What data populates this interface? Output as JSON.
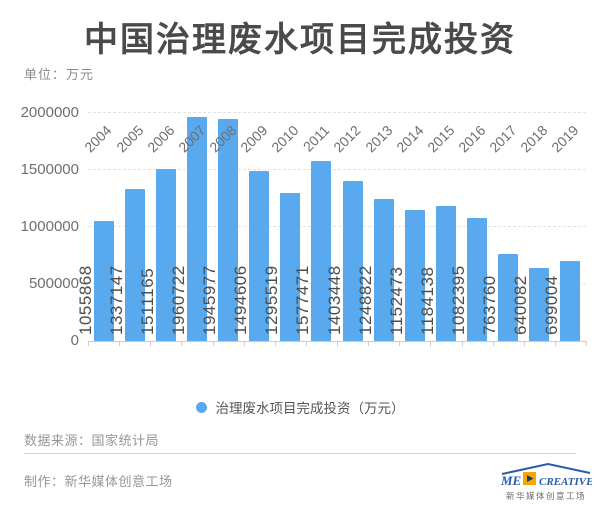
{
  "title": "中国治理废水项目完成投资",
  "unit_label": "单位：万元",
  "chart_data": {
    "type": "bar",
    "title": "中国治理废水项目完成投资",
    "ylabel": "万元",
    "categories": [
      "2004",
      "2005",
      "2006",
      "2007",
      "2008",
      "2009",
      "2010",
      "2011",
      "2012",
      "2013",
      "2014",
      "2015",
      "2016",
      "2017",
      "2018",
      "2019"
    ],
    "values": [
      1055868,
      1337147,
      1511165,
      1960722,
      1945977,
      1494606,
      1295519,
      1577471,
      1403448,
      1248822,
      1152473,
      1184138,
      1082395,
      763760,
      640082,
      699004
    ],
    "series_name": "治理废水项目完成投资（万元）",
    "ylim": [
      0,
      2000000
    ],
    "yticks": [
      0,
      500000,
      1000000,
      1500000,
      2000000
    ],
    "bar_color": "#58A9EE",
    "grid": "dashed-horizontal",
    "legend_position": "bottom",
    "value_labels": "inside-vertical"
  },
  "legend": {
    "label": "治理废水项目完成投资（万元）",
    "dot_color": "#58A9EE"
  },
  "footer": {
    "source": "数据来源：国家统计局",
    "maker": "制作：新华媒体创意工场"
  },
  "logo": {
    "text_me": "ME",
    "text_create": "CREATIVE",
    "subtext": "新华媒体创意工场",
    "blue": "#2a5caa",
    "orange": "#f7a600"
  }
}
